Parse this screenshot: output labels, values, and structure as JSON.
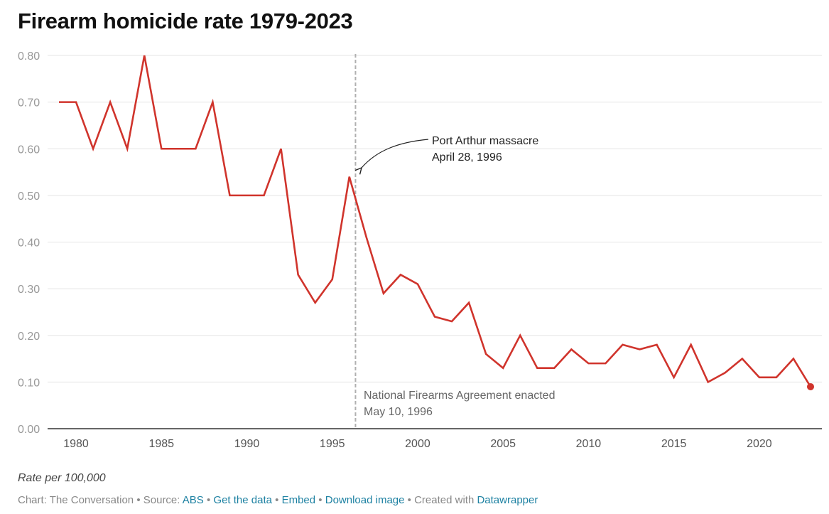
{
  "title": "Firearm homicide rate 1979-2023",
  "note": "Rate per 100,000",
  "footer": {
    "credit": "Chart: The Conversation",
    "source_label": "Source:",
    "source_link": "ABS",
    "get_data": "Get the data",
    "embed": "Embed",
    "download": "Download image",
    "created_with": "Created with",
    "datawrapper": "Datawrapper",
    "sep": "•"
  },
  "colors": {
    "line": "#d0342c",
    "grid": "#e5e5e5",
    "axis": "#333333",
    "event": "#b0b0b0",
    "link": "#1d81a2"
  },
  "chart_data": {
    "type": "line",
    "title": "Firearm homicide rate 1979-2023",
    "ylabel": "Rate per 100,000",
    "xlim": [
      1979,
      2023
    ],
    "ylim": [
      0,
      0.8
    ],
    "yticks": [
      0,
      0.1,
      0.2,
      0.3,
      0.4,
      0.5,
      0.6,
      0.7,
      0.8
    ],
    "ytick_labels": [
      "0.00",
      "0.10",
      "0.20",
      "0.30",
      "0.40",
      "0.50",
      "0.60",
      "0.70",
      "0.80"
    ],
    "xticks": [
      1980,
      1985,
      1990,
      1995,
      2000,
      2005,
      2010,
      2015,
      2020
    ],
    "xtick_labels": [
      "1980",
      "1985",
      "1990",
      "1995",
      "2000",
      "2005",
      "2010",
      "2015",
      "2020"
    ],
    "grid": true,
    "series": [
      {
        "name": "Firearm homicide rate",
        "x": [
          1979,
          1980,
          1981,
          1982,
          1983,
          1984,
          1985,
          1986,
          1987,
          1988,
          1989,
          1990,
          1991,
          1992,
          1993,
          1994,
          1995,
          1996,
          1997,
          1998,
          1999,
          2000,
          2001,
          2002,
          2003,
          2004,
          2005,
          2006,
          2007,
          2008,
          2009,
          2010,
          2011,
          2012,
          2013,
          2014,
          2015,
          2016,
          2017,
          2018,
          2019,
          2020,
          2021,
          2022,
          2023
        ],
        "values": [
          0.7,
          0.7,
          0.6,
          0.7,
          0.6,
          0.8,
          0.6,
          0.6,
          0.6,
          0.7,
          0.5,
          0.5,
          0.5,
          0.6,
          0.33,
          0.27,
          0.32,
          0.54,
          0.41,
          0.29,
          0.33,
          0.31,
          0.24,
          0.23,
          0.27,
          0.16,
          0.13,
          0.2,
          0.13,
          0.13,
          0.17,
          0.14,
          0.14,
          0.18,
          0.17,
          0.18,
          0.11,
          0.18,
          0.1,
          0.12,
          0.15,
          0.11,
          0.11,
          0.15,
          0.09
        ]
      }
    ],
    "event_line": {
      "x": 1996.36
    },
    "annotations": [
      {
        "name": "port-arthur",
        "line1": "Port Arthur massacre",
        "line2": "April 28, 1996"
      },
      {
        "name": "nfa",
        "line1": "National Firearms Agreement enacted",
        "line2": "May 10, 1996"
      }
    ]
  }
}
